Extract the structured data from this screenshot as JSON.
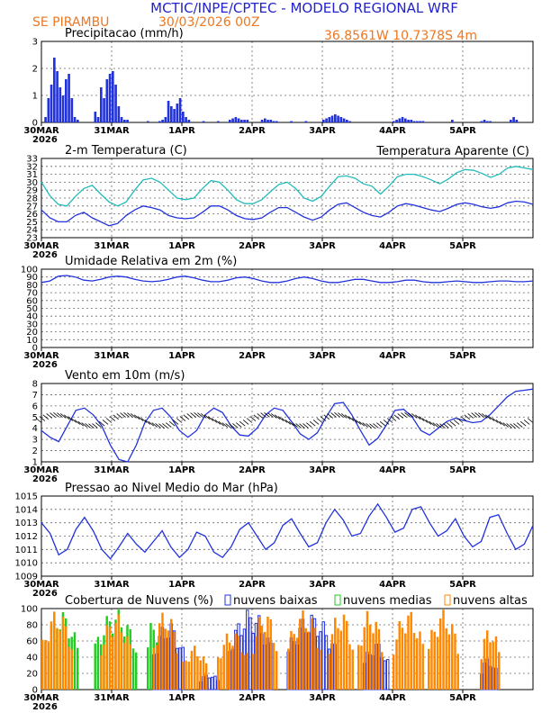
{
  "header": {
    "title": "MCTIC/INPE/CPTEC - MODELO REGIONAL WRF",
    "location": "SE PIRAMBU",
    "run": "30/03/2026 00Z",
    "coords": "36.8561W 10.7378S 4m"
  },
  "colors": {
    "title": "#2222cc",
    "accent": "#ee7722",
    "series": "#2233dd",
    "apparent": "#22bbbb",
    "green": "#22cc22",
    "orange": "#ff8800"
  },
  "xaxis": {
    "ticks": [
      "30MAR",
      "31MAR",
      "1APR",
      "2APR",
      "3APR",
      "4APR",
      "5APR"
    ],
    "year": "2026"
  },
  "chart_data": [
    {
      "type": "bar",
      "title": "Precipitacao (mm/h)",
      "ylim": [
        0,
        3
      ],
      "yticks": [
        0,
        1,
        2,
        3
      ],
      "x_hours": [
        1,
        2,
        3,
        4,
        5,
        6,
        7,
        8,
        9,
        10,
        11,
        12,
        18,
        19,
        20,
        21,
        22,
        23,
        24,
        25,
        26,
        27,
        28,
        29,
        36,
        40,
        41,
        42,
        43,
        44,
        45,
        46,
        47,
        48,
        49,
        50,
        55,
        60,
        64,
        65,
        66,
        67,
        68,
        69,
        70,
        75,
        76,
        77,
        78,
        79,
        80,
        85,
        90,
        96,
        97,
        98,
        99,
        100,
        101,
        102,
        103,
        104,
        105,
        120,
        121,
        122,
        123,
        124,
        125,
        126,
        127,
        128,
        129,
        130,
        140,
        150,
        151,
        152,
        153,
        160,
        161,
        162
      ],
      "values": [
        0.2,
        0.9,
        1.4,
        2.4,
        1.9,
        1.3,
        1.0,
        1.6,
        1.8,
        0.9,
        0.2,
        0.1,
        0.4,
        0.2,
        1.3,
        0.9,
        1.6,
        1.8,
        1.9,
        1.4,
        0.6,
        0.2,
        0.1,
        0.1,
        0.05,
        0.05,
        0.1,
        0.2,
        0.8,
        0.6,
        0.5,
        0.7,
        0.9,
        0.4,
        0.2,
        0.1,
        0.05,
        0.05,
        0.1,
        0.15,
        0.2,
        0.15,
        0.1,
        0.1,
        0.1,
        0.1,
        0.15,
        0.1,
        0.1,
        0.05,
        0.05,
        0.05,
        0.05,
        0.1,
        0.15,
        0.2,
        0.25,
        0.3,
        0.25,
        0.2,
        0.15,
        0.1,
        0.05,
        0.05,
        0.1,
        0.15,
        0.2,
        0.15,
        0.1,
        0.1,
        0.05,
        0.05,
        0.05,
        0.05,
        0.1,
        0.05,
        0.1,
        0.05,
        0.05,
        0.1,
        0.2,
        0.1
      ]
    },
    {
      "type": "line",
      "title": "2-m Temperatura (C)",
      "legend": "Temperatura Aparente (C)",
      "ylim": [
        23,
        33
      ],
      "yticks": [
        23,
        24,
        25,
        26,
        27,
        28,
        29,
        30,
        31,
        32,
        33
      ],
      "series": [
        {
          "name": "Temperatura",
          "values": [
            26.5,
            25.5,
            25.0,
            25.0,
            25.8,
            26.2,
            25.5,
            25.0,
            24.5,
            24.8,
            25.8,
            26.5,
            27.0,
            26.8,
            26.5,
            25.8,
            25.5,
            25.4,
            25.5,
            26.2,
            27.0,
            27.0,
            26.5,
            25.8,
            25.4,
            25.3,
            25.5,
            26.2,
            26.8,
            26.8,
            26.2,
            25.6,
            25.2,
            25.6,
            26.5,
            27.2,
            27.4,
            26.8,
            26.2,
            25.8,
            25.6,
            26.2,
            27.0,
            27.3,
            27.1,
            26.8,
            26.5,
            26.3,
            26.7,
            27.2,
            27.4,
            27.2,
            26.9,
            26.7,
            26.9,
            27.4,
            27.6,
            27.5,
            27.2
          ]
        },
        {
          "name": "Aparente",
          "values": [
            30.0,
            28.3,
            27.2,
            27.0,
            28.2,
            29.2,
            29.6,
            28.5,
            27.5,
            27.0,
            27.5,
            29.0,
            30.3,
            30.5,
            30.0,
            29.0,
            28.0,
            27.8,
            28.0,
            29.2,
            30.2,
            30.0,
            29.0,
            27.8,
            27.3,
            27.3,
            27.8,
            28.8,
            29.7,
            30.0,
            29.2,
            28.0,
            27.6,
            28.2,
            29.5,
            30.7,
            30.8,
            30.5,
            29.8,
            29.5,
            28.5,
            29.5,
            30.7,
            31.0,
            31.0,
            30.7,
            30.3,
            29.8,
            30.4,
            31.2,
            31.6,
            31.5,
            31.1,
            30.6,
            31.0,
            31.8,
            32.0,
            31.8,
            31.6
          ]
        }
      ]
    },
    {
      "type": "line",
      "title": "Umidade Relativa em 2m (%)",
      "ylim": [
        0,
        100
      ],
      "yticks": [
        0,
        10,
        20,
        30,
        40,
        50,
        60,
        70,
        80,
        90,
        100
      ],
      "series": [
        {
          "name": "UR",
          "values": [
            83,
            85,
            91,
            92,
            90,
            86,
            85,
            87,
            90,
            91,
            90,
            87,
            85,
            84,
            85,
            87,
            90,
            91,
            89,
            86,
            84,
            84,
            86,
            89,
            90,
            88,
            85,
            83,
            83,
            85,
            88,
            90,
            88,
            85,
            83,
            83,
            85,
            87,
            87,
            85,
            83,
            83,
            84,
            86,
            86,
            84,
            83,
            83,
            84,
            85,
            84,
            83,
            83,
            84,
            85,
            85,
            84,
            84,
            85
          ]
        }
      ]
    },
    {
      "type": "line",
      "title": "Vento em 10m (m/s)",
      "ylim": [
        1,
        8
      ],
      "yticks": [
        1,
        2,
        3,
        4,
        5,
        6,
        7,
        8
      ],
      "series": [
        {
          "name": "Vento",
          "values": [
            3.8,
            3.2,
            2.8,
            4.2,
            5.6,
            5.8,
            5.2,
            4.2,
            2.5,
            1.2,
            1.0,
            2.5,
            4.5,
            5.6,
            5.8,
            5.0,
            3.8,
            3.2,
            3.8,
            5.2,
            5.8,
            5.4,
            4.2,
            3.4,
            3.3,
            4.0,
            5.2,
            5.8,
            5.6,
            4.6,
            3.5,
            3.0,
            3.6,
            5.0,
            6.2,
            6.3,
            5.2,
            3.8,
            2.5,
            3.1,
            4.3,
            5.6,
            5.7,
            5.0,
            3.8,
            3.4,
            4.0,
            4.6,
            4.9,
            4.7,
            4.5,
            4.6,
            5.2,
            6.0,
            6.8,
            7.3,
            7.4,
            7.5
          ]
        }
      ]
    },
    {
      "type": "line",
      "title": "Pressao ao Nivel Medio do Mar (hPa)",
      "ylim": [
        1009,
        1015
      ],
      "yticks": [
        1009,
        1010,
        1011,
        1012,
        1013,
        1014,
        1015
      ],
      "series": [
        {
          "name": "Pressao",
          "values": [
            1013.0,
            1012.2,
            1010.6,
            1011.0,
            1012.5,
            1013.4,
            1012.4,
            1011.0,
            1010.3,
            1011.2,
            1012.2,
            1011.4,
            1010.8,
            1011.6,
            1012.4,
            1011.2,
            1010.4,
            1011.0,
            1012.3,
            1012.0,
            1010.8,
            1010.4,
            1011.2,
            1012.5,
            1013.0,
            1012.0,
            1011.0,
            1011.5,
            1012.8,
            1013.3,
            1012.2,
            1011.2,
            1011.5,
            1013.0,
            1014.0,
            1013.2,
            1012.0,
            1012.2,
            1013.5,
            1014.4,
            1013.4,
            1012.3,
            1012.6,
            1014.0,
            1014.2,
            1013.0,
            1012.0,
            1012.4,
            1013.3,
            1012.0,
            1011.2,
            1011.6,
            1013.4,
            1013.6,
            1012.2,
            1011.0,
            1011.4,
            1012.8
          ]
        }
      ]
    },
    {
      "type": "bar",
      "title": "Cobertura de Nuvens (%)",
      "ylim": [
        0,
        100
      ],
      "yticks": [
        0,
        20,
        40,
        60,
        80,
        100
      ],
      "legend": [
        "nuvens baixas",
        "nuvens medias",
        "nuvens altas"
      ],
      "series": [
        {
          "name": "nuvens baixas",
          "periods_hours": [
            [
              38,
              48
            ],
            [
              54,
              60
            ],
            [
              64,
              78
            ],
            [
              84,
              100
            ],
            [
              110,
              118
            ],
            [
              150,
              155
            ]
          ],
          "peaks": [
            85,
            20,
            100,
            95,
            60,
            40
          ]
        },
        {
          "name": "nuvens medias",
          "periods_hours": [
            [
              0,
              12
            ],
            [
              18,
              32
            ],
            [
              36,
              40
            ]
          ],
          "peaks": [
            100,
            100,
            90
          ]
        },
        {
          "name": "nuvens altas",
          "periods_hours": [
            [
              0,
              10
            ],
            [
              20,
              30
            ],
            [
              38,
              46
            ],
            [
              48,
              56
            ],
            [
              60,
              70
            ],
            [
              72,
              80
            ],
            [
              84,
              95
            ],
            [
              98,
              106
            ],
            [
              108,
              116
            ],
            [
              120,
              130
            ],
            [
              132,
              142
            ],
            [
              150,
              156
            ]
          ],
          "peaks": [
            100,
            95,
            100,
            55,
            75,
            100,
            100,
            100,
            100,
            100,
            100,
            80
          ]
        }
      ]
    }
  ]
}
